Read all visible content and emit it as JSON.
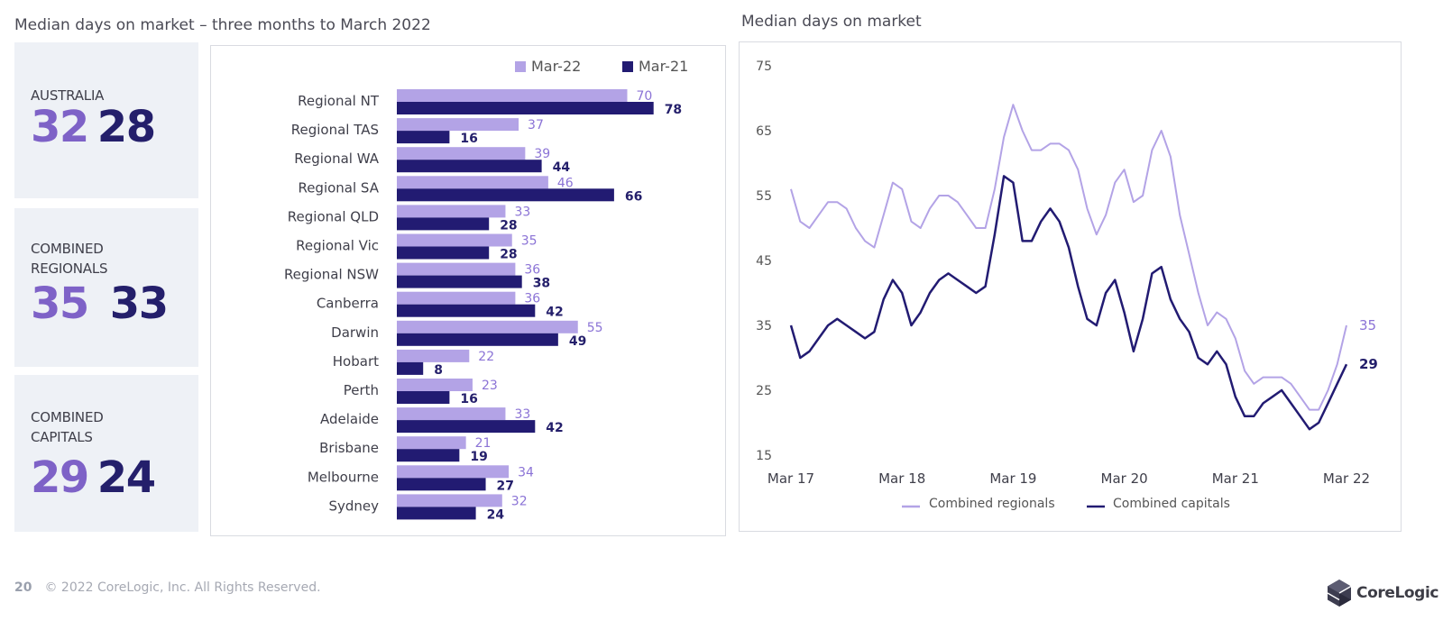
{
  "left_title": "Median days on market – three months to March 2022",
  "right_title": "Median days on market",
  "cards": [
    {
      "label": "AUSTRALIA",
      "value_mar22": "32",
      "value_mar21": "28"
    },
    {
      "label": "COMBINED\nREGIONALS",
      "value_mar22": "35",
      "value_mar21": "33"
    },
    {
      "label": "COMBINED\nCAPITALS",
      "value_mar22": "29",
      "value_mar21": "24"
    }
  ],
  "footer": {
    "page": "20",
    "copyright": "© 2022 CoreLogic, Inc. All Rights Reserved."
  },
  "logo": {
    "text": "CoreLogic"
  },
  "colors": {
    "light": "#b3a3e6",
    "dark": "#221b72",
    "light_text": "#8b73d6",
    "dark_text": "#241f6b"
  },
  "chart_data": [
    {
      "type": "bar",
      "orientation": "horizontal",
      "categories": [
        "Regional NT",
        "Regional TAS",
        "Regional WA",
        "Regional SA",
        "Regional QLD",
        "Regional Vic",
        "Regional NSW",
        "Canberra",
        "Darwin",
        "Hobart",
        "Perth",
        "Adelaide",
        "Brisbane",
        "Melbourne",
        "Sydney"
      ],
      "series": [
        {
          "name": "Mar-22",
          "values": [
            70,
            37,
            39,
            46,
            33,
            35,
            36,
            36,
            55,
            22,
            23,
            33,
            21,
            34,
            32
          ]
        },
        {
          "name": "Mar-21",
          "values": [
            78,
            16,
            44,
            66,
            28,
            28,
            38,
            42,
            49,
            8,
            16,
            42,
            19,
            27,
            24
          ]
        }
      ],
      "legend": "top-right",
      "data_labels": true
    },
    {
      "type": "line",
      "x_tick_labels": [
        "Mar 17",
        "Mar 18",
        "Mar 19",
        "Mar 20",
        "Mar 21",
        "Mar 22"
      ],
      "y_ticks": [
        15,
        25,
        35,
        45,
        55,
        65,
        75
      ],
      "ylim": [
        15,
        75
      ],
      "x_period": "monthly, Mar 2017 – Mar 2022",
      "series": [
        {
          "name": "Combined regionals",
          "values": [
            56,
            51,
            50,
            52,
            54,
            54,
            53,
            50,
            48,
            47,
            52,
            57,
            56,
            51,
            50,
            53,
            55,
            55,
            54,
            52,
            50,
            50,
            56,
            64,
            69,
            65,
            62,
            62,
            63,
            63,
            62,
            59,
            53,
            49,
            52,
            57,
            59,
            54,
            55,
            62,
            65,
            61,
            52,
            46,
            40,
            35,
            37,
            36,
            33,
            28,
            26,
            27,
            27,
            27,
            26,
            24,
            22,
            22,
            25,
            29,
            35
          ]
        },
        {
          "name": "Combined capitals",
          "values": [
            35,
            30,
            31,
            33,
            35,
            36,
            35,
            34,
            33,
            34,
            39,
            42,
            40,
            35,
            37,
            40,
            42,
            43,
            42,
            41,
            40,
            41,
            49,
            58,
            57,
            48,
            48,
            51,
            53,
            51,
            47,
            41,
            36,
            35,
            40,
            42,
            37,
            31,
            36,
            43,
            44,
            39,
            36,
            34,
            30,
            29,
            31,
            29,
            24,
            21,
            21,
            23,
            24,
            25,
            23,
            21,
            19,
            20,
            23,
            26,
            29
          ]
        }
      ],
      "end_labels": [
        "35",
        "29"
      ],
      "legend": "bottom"
    }
  ]
}
